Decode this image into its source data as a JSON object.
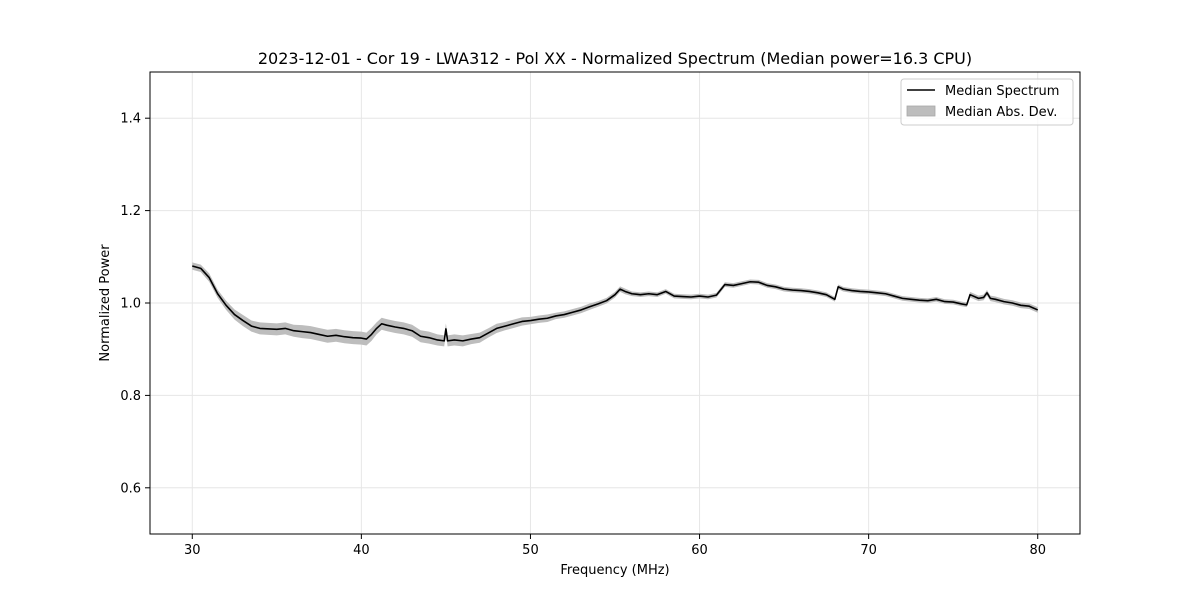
{
  "chart_data": {
    "type": "line",
    "title": "2023-12-01 - Cor 19 - LWA312 - Pol XX - Normalized Spectrum (Median power=16.3 CPU)",
    "xlabel": "Frequency (MHz)",
    "ylabel": "Normalized Power",
    "xlim": [
      27.5,
      82.5
    ],
    "ylim": [
      0.5,
      1.5
    ],
    "xticks": [
      30,
      40,
      50,
      60,
      70,
      80
    ],
    "yticks": [
      0.6,
      0.8,
      1.0,
      1.2,
      1.4
    ],
    "xtick_labels": [
      "30",
      "40",
      "50",
      "60",
      "70",
      "80"
    ],
    "ytick_labels": [
      "0.6",
      "0.8",
      "1.0",
      "1.2",
      "1.4"
    ],
    "grid": true,
    "legend": {
      "position": "top-right",
      "entries": [
        {
          "label": "Median Spectrum",
          "kind": "line",
          "color": "#000000"
        },
        {
          "label": "Median Abs. Dev.",
          "kind": "band",
          "color": "#bdbdbd"
        }
      ]
    },
    "series": [
      {
        "name": "Median Spectrum",
        "color": "#000000",
        "band_name": "Median Abs. Dev.",
        "band_color": "#bdbdbd",
        "x": [
          30.0,
          30.5,
          31.0,
          31.5,
          32.0,
          32.5,
          33.0,
          33.5,
          34.0,
          35.0,
          35.5,
          36.0,
          36.5,
          37.0,
          37.5,
          38.0,
          38.5,
          39.0,
          39.5,
          40.0,
          40.3,
          40.6,
          40.9,
          41.2,
          41.5,
          42.0,
          42.5,
          43.0,
          43.5,
          44.0,
          44.5,
          44.9,
          45.0,
          45.1,
          45.5,
          46.0,
          46.5,
          47.0,
          47.5,
          48.0,
          48.5,
          49.0,
          49.5,
          50.0,
          50.5,
          51.0,
          51.5,
          52.0,
          52.5,
          53.0,
          53.5,
          54.0,
          54.5,
          55.0,
          55.3,
          55.6,
          56.0,
          56.5,
          57.0,
          57.5,
          58.0,
          58.5,
          59.0,
          59.5,
          60.0,
          60.5,
          61.0,
          61.5,
          62.0,
          62.5,
          63.0,
          63.5,
          64.0,
          64.5,
          65.0,
          65.5,
          66.0,
          66.5,
          67.0,
          67.5,
          68.0,
          68.2,
          68.5,
          69.0,
          69.5,
          70.0,
          70.5,
          71.0,
          71.5,
          72.0,
          72.5,
          73.0,
          73.5,
          74.0,
          74.5,
          75.0,
          75.5,
          75.8,
          76.0,
          76.5,
          76.8,
          77.0,
          77.2,
          77.5,
          78.0,
          78.5,
          79.0,
          79.5,
          80.0
        ],
        "y": [
          1.08,
          1.075,
          1.055,
          1.02,
          0.995,
          0.975,
          0.962,
          0.95,
          0.945,
          0.943,
          0.945,
          0.94,
          0.938,
          0.936,
          0.932,
          0.928,
          0.93,
          0.927,
          0.925,
          0.924,
          0.922,
          0.932,
          0.945,
          0.955,
          0.952,
          0.948,
          0.945,
          0.94,
          0.928,
          0.925,
          0.92,
          0.918,
          0.944,
          0.918,
          0.92,
          0.918,
          0.922,
          0.925,
          0.935,
          0.945,
          0.95,
          0.955,
          0.96,
          0.962,
          0.965,
          0.967,
          0.972,
          0.975,
          0.98,
          0.985,
          0.992,
          0.998,
          1.005,
          1.018,
          1.03,
          1.025,
          1.02,
          1.018,
          1.02,
          1.018,
          1.025,
          1.015,
          1.014,
          1.013,
          1.015,
          1.013,
          1.017,
          1.04,
          1.038,
          1.042,
          1.046,
          1.045,
          1.038,
          1.035,
          1.03,
          1.028,
          1.027,
          1.025,
          1.022,
          1.018,
          1.008,
          1.035,
          1.03,
          1.027,
          1.025,
          1.024,
          1.022,
          1.02,
          1.015,
          1.01,
          1.008,
          1.006,
          1.005,
          1.008,
          1.003,
          1.002,
          0.998,
          0.996,
          1.018,
          1.01,
          1.012,
          1.022,
          1.01,
          1.008,
          1.003,
          1.0,
          0.995,
          0.993,
          0.985
        ],
        "mad": [
          0.008,
          0.008,
          0.009,
          0.009,
          0.01,
          0.011,
          0.012,
          0.012,
          0.013,
          0.013,
          0.013,
          0.013,
          0.014,
          0.014,
          0.014,
          0.014,
          0.014,
          0.014,
          0.014,
          0.014,
          0.014,
          0.014,
          0.013,
          0.013,
          0.013,
          0.013,
          0.013,
          0.013,
          0.013,
          0.013,
          0.012,
          0.012,
          0.012,
          0.012,
          0.012,
          0.012,
          0.011,
          0.011,
          0.01,
          0.01,
          0.009,
          0.009,
          0.009,
          0.008,
          0.008,
          0.008,
          0.007,
          0.007,
          0.007,
          0.007,
          0.007,
          0.006,
          0.006,
          0.006,
          0.006,
          0.006,
          0.005,
          0.005,
          0.005,
          0.005,
          0.005,
          0.005,
          0.005,
          0.005,
          0.005,
          0.005,
          0.005,
          0.005,
          0.005,
          0.005,
          0.005,
          0.005,
          0.005,
          0.005,
          0.005,
          0.005,
          0.005,
          0.005,
          0.005,
          0.005,
          0.005,
          0.005,
          0.005,
          0.005,
          0.005,
          0.005,
          0.005,
          0.005,
          0.005,
          0.005,
          0.005,
          0.005,
          0.005,
          0.005,
          0.005,
          0.005,
          0.005,
          0.005,
          0.006,
          0.006,
          0.006,
          0.006,
          0.006,
          0.006,
          0.006,
          0.006,
          0.006,
          0.006,
          0.006
        ]
      }
    ]
  }
}
